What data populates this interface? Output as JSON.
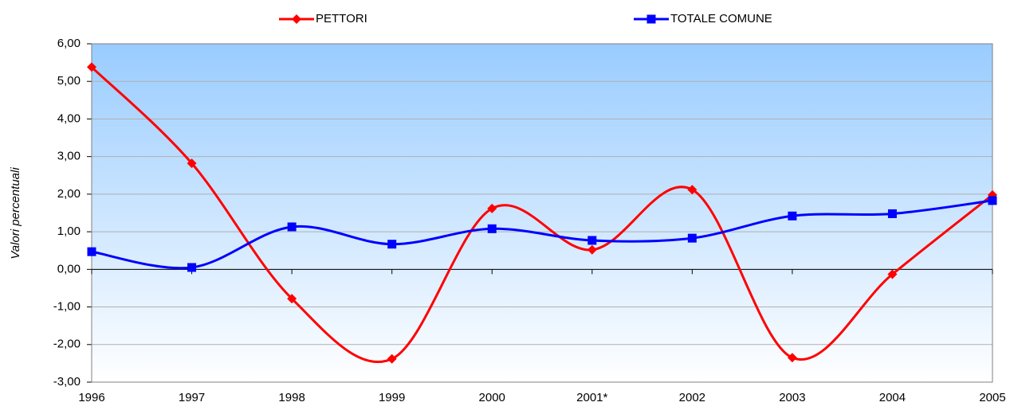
{
  "chart_data": {
    "type": "line",
    "y_label": "Valori percentuali",
    "categories": [
      "1996",
      "1997",
      "1998",
      "1999",
      "2000",
      "2001*",
      "2002",
      "2003",
      "2004",
      "2005"
    ],
    "series": [
      {
        "name": "PETTORI",
        "color": "#ff0000",
        "marker": "diamond",
        "values": [
          5.38,
          2.82,
          -0.78,
          -2.38,
          1.62,
          0.52,
          2.12,
          -2.35,
          -0.13,
          1.98
        ]
      },
      {
        "name": "TOTALE COMUNE",
        "color": "#0000ff",
        "marker": "square",
        "values": [
          0.47,
          0.05,
          1.13,
          0.67,
          1.08,
          0.77,
          0.83,
          1.42,
          1.48,
          1.83
        ]
      }
    ],
    "ylim": [
      -3,
      6
    ],
    "yticks": [
      {
        "value": -3,
        "label": "-3,00"
      },
      {
        "value": -2,
        "label": "-2,00"
      },
      {
        "value": -1,
        "label": "-1,00"
      },
      {
        "value": 0,
        "label": "0,00"
      },
      {
        "value": 1,
        "label": "1,00"
      },
      {
        "value": 2,
        "label": "2,00"
      },
      {
        "value": 3,
        "label": "3,00"
      },
      {
        "value": 4,
        "label": "4,00"
      },
      {
        "value": 5,
        "label": "5,00"
      },
      {
        "value": 6,
        "label": "6,00"
      }
    ],
    "grid": true,
    "smooth": true,
    "legend": "top"
  }
}
